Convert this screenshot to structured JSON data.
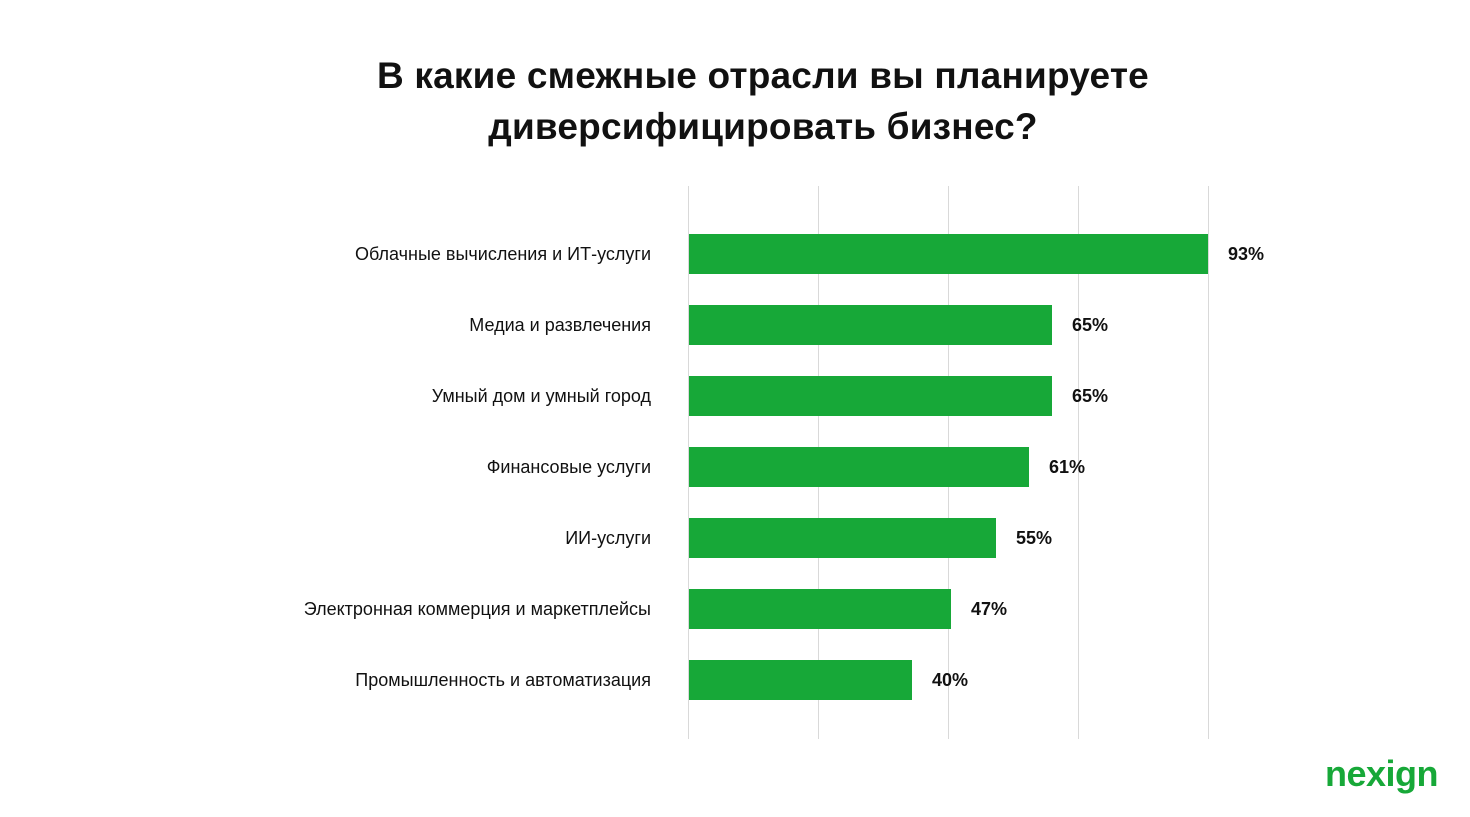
{
  "title_lines": [
    "В какие смежные отрасли вы планируете",
    "диверсифицировать бизнес?"
  ],
  "logo_text": "nexign",
  "colors": {
    "bar": "#17a838",
    "grid": "#d9d9d9",
    "logo": "#17a838",
    "text": "#111111"
  },
  "chart_data": {
    "type": "bar",
    "orientation": "horizontal",
    "title": "В какие смежные отрасли вы планируете диверсифицировать бизнес?",
    "categories": [
      "Облачные вычисления и ИТ-услуги",
      "Медиа и развлечения",
      "Умный дом и умный город",
      "Финансовые услуги",
      "ИИ-услуги",
      "Электронная коммерция и маркетплейсы",
      "Промышленность и автоматизация"
    ],
    "values": [
      93,
      65,
      65,
      61,
      55,
      47,
      40
    ],
    "value_labels": [
      "93%",
      "65%",
      "65%",
      "61%",
      "55%",
      "47%",
      "40%"
    ],
    "unit": "%",
    "xlim": [
      0,
      93
    ],
    "xlabel": "",
    "ylabel": "",
    "grid": true,
    "legend": "none"
  }
}
